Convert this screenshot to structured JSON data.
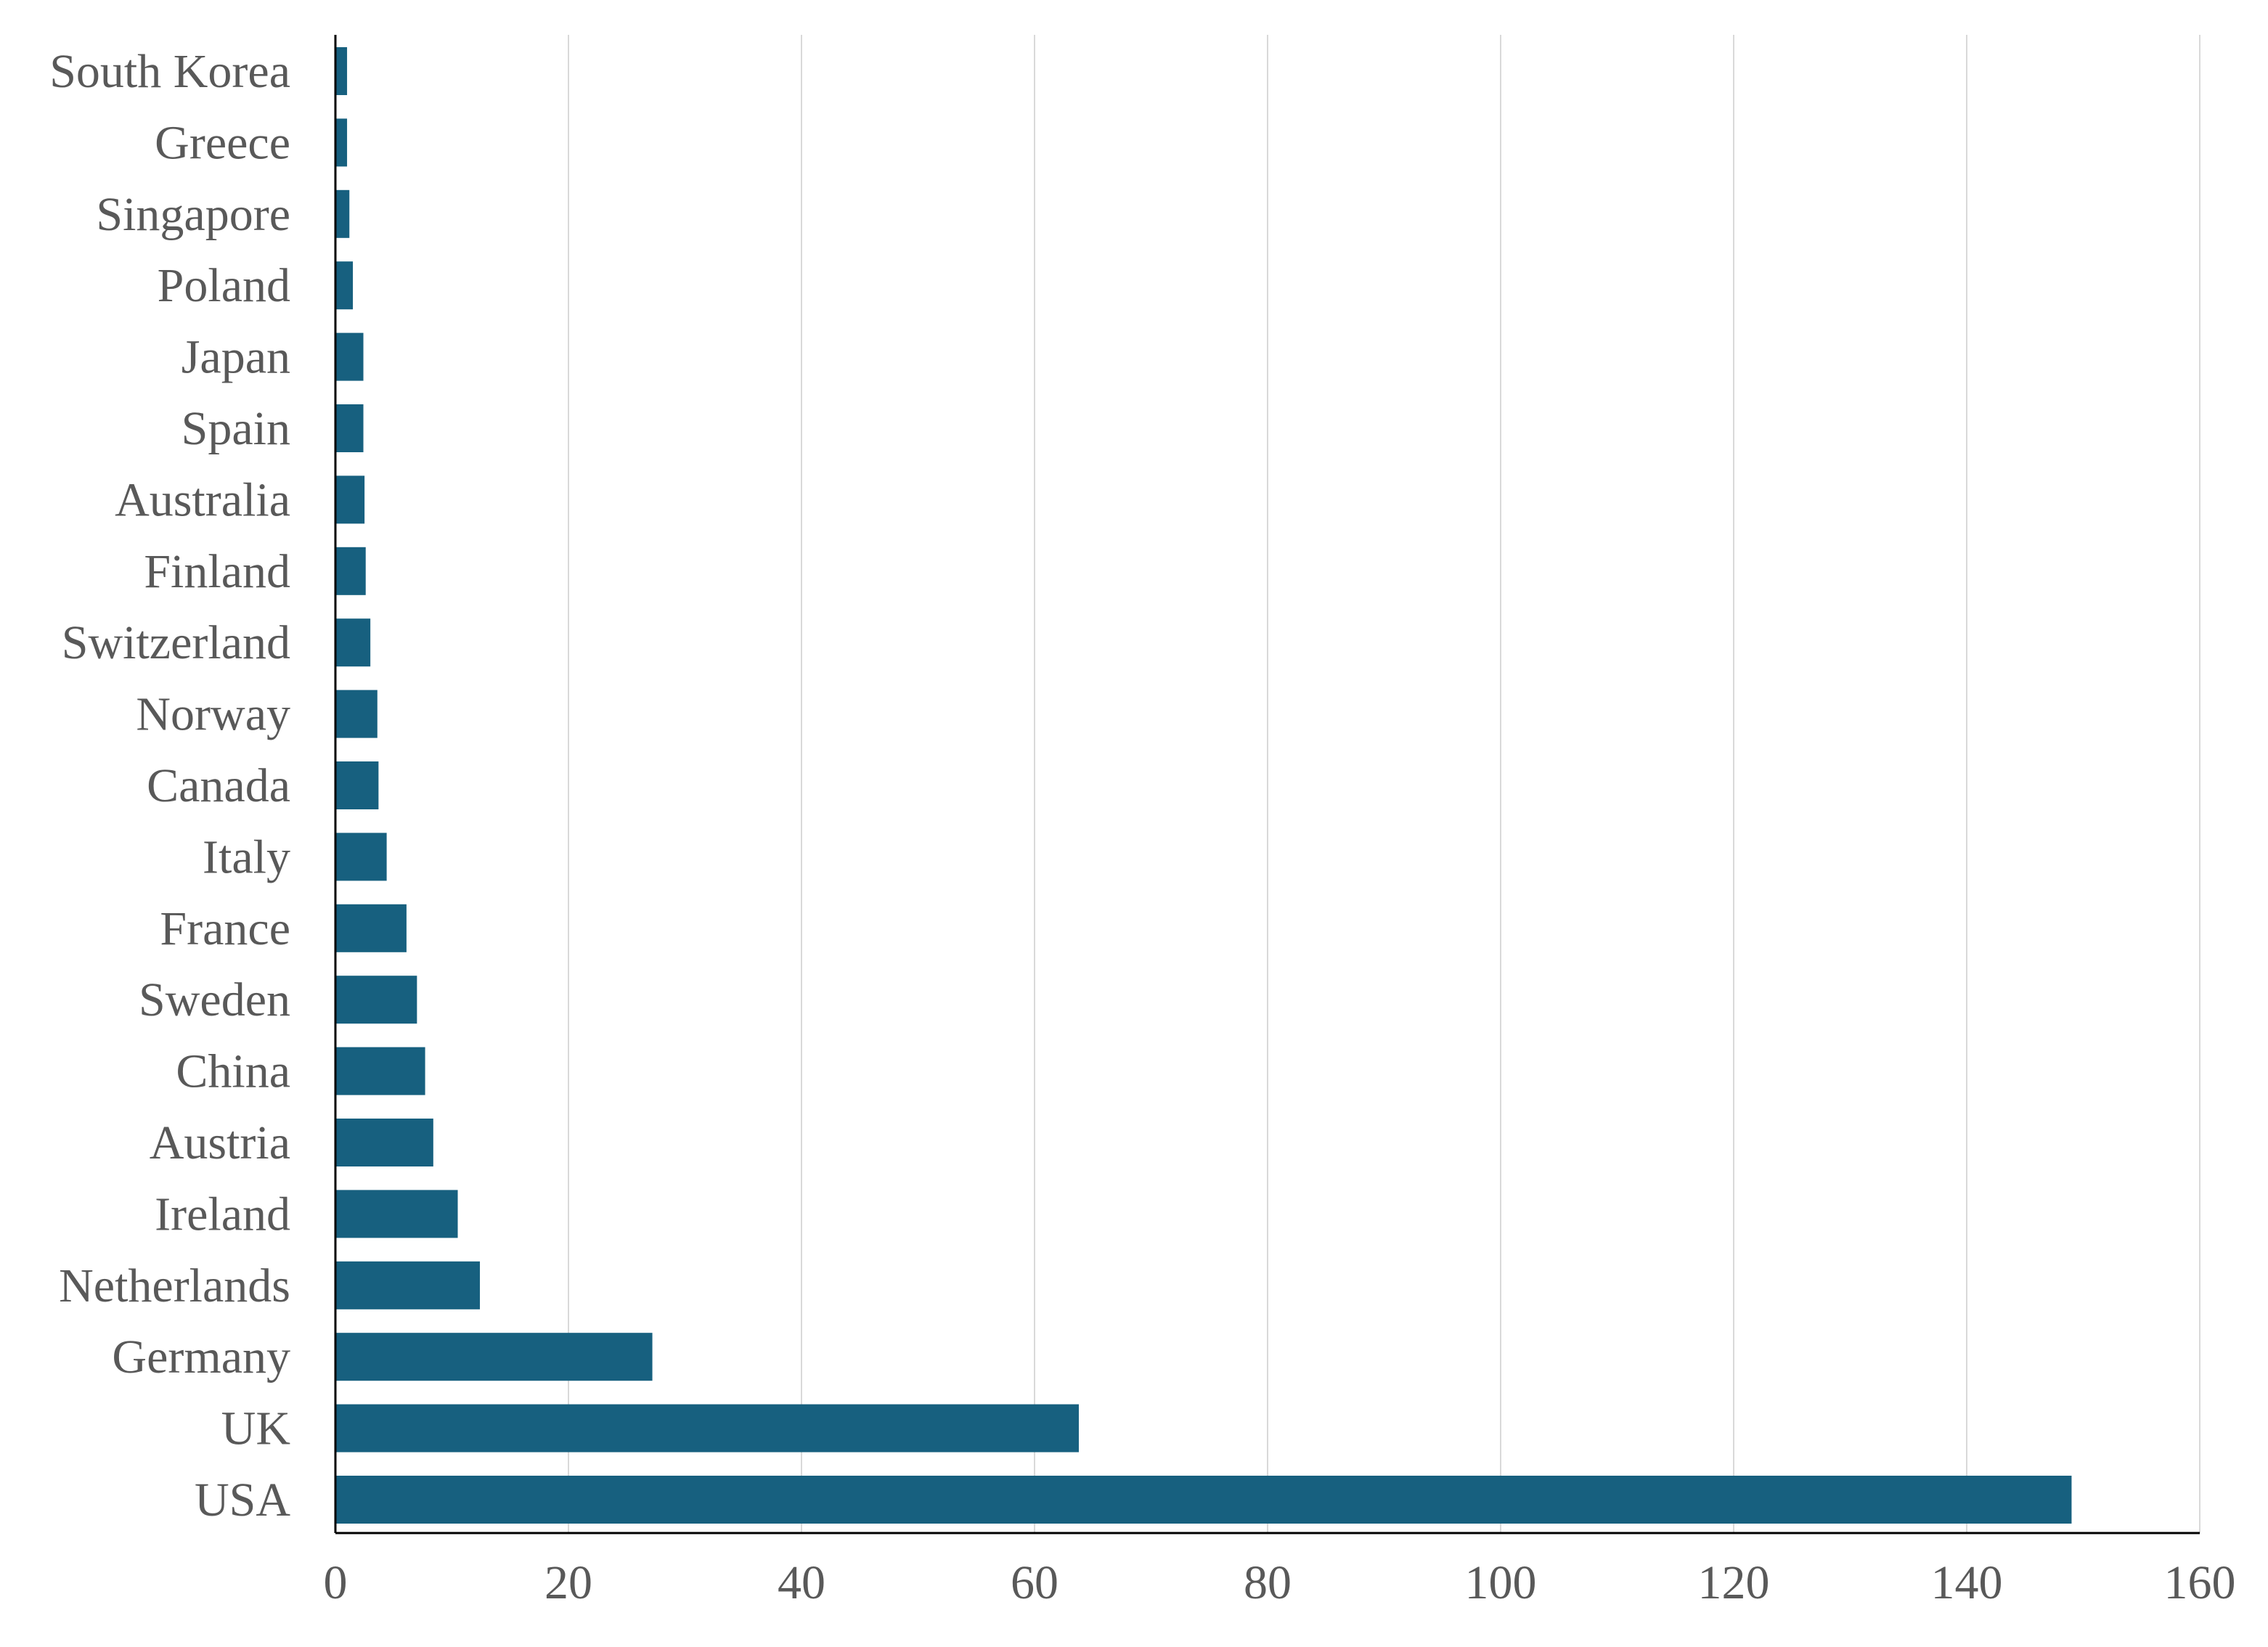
{
  "chart_data": {
    "type": "bar",
    "orientation": "horizontal",
    "title": "",
    "xlabel": "",
    "ylabel": "",
    "xlim": [
      0,
      160
    ],
    "x_ticks": [
      0,
      20,
      40,
      60,
      80,
      100,
      120,
      140,
      160
    ],
    "grid": "vertical",
    "legend": "none",
    "bar_color": "#17607F",
    "grid_color": "#D9D9D9",
    "axis_color": "#000000",
    "label_color": "#595959",
    "categories": [
      "South Korea",
      "Greece",
      "Singapore",
      "Poland",
      "Japan",
      "Spain",
      "Australia",
      "Finland",
      "Switzerland",
      "Norway",
      "Canada",
      "Italy",
      "France",
      "Sweden",
      "China",
      "Austria",
      "Ireland",
      "Netherlands",
      "Germany",
      "UK",
      "USA"
    ],
    "values": [
      1.0,
      1.0,
      1.2,
      1.5,
      2.4,
      2.4,
      2.5,
      2.6,
      3.0,
      3.6,
      3.7,
      4.4,
      6.1,
      7.0,
      7.7,
      8.4,
      10.5,
      12.4,
      27.2,
      63.8,
      149.0
    ]
  }
}
